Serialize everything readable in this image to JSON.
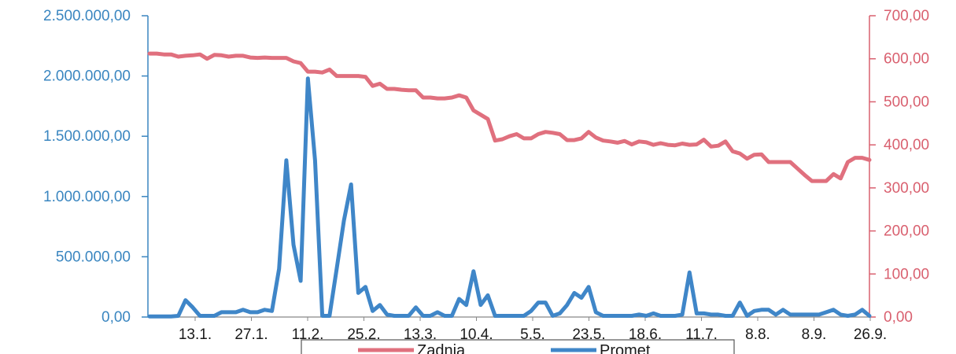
{
  "chart_data": {
    "type": "line",
    "x_tick_labels": [
      "13.1.",
      "27.1.",
      "11.2.",
      "25.2.",
      "13.3.",
      "10.4.",
      "5.5.",
      "23.5.",
      "18.6.",
      "11.7.",
      "8.8.",
      "8.9.",
      "26.9."
    ],
    "y_left": {
      "ticks": [
        "2.500.000,00",
        "2.000.000,00",
        "1.500.000,00",
        "1.000.000,00",
        "500.000,00",
        "0,00"
      ],
      "range": [
        0,
        2500000
      ],
      "color": "#3a86c0"
    },
    "y_right": {
      "ticks": [
        "700,00",
        "600,00",
        "500,00",
        "400,00",
        "300,00",
        "200,00",
        "100,00",
        "0,00"
      ],
      "range": [
        0,
        700
      ],
      "color": "#d9606f"
    },
    "legend": {
      "position": "bottom",
      "entries": [
        "Zadnja",
        "Promet"
      ]
    },
    "series": [
      {
        "name": "Zadnja",
        "axis": "right",
        "color": "#e0707e",
        "values": [
          612,
          612,
          610,
          610,
          605,
          607,
          608,
          610,
          600,
          609,
          608,
          605,
          607,
          607,
          603,
          602,
          603,
          602,
          602,
          602,
          594,
          590,
          570,
          570,
          568,
          575,
          560,
          560,
          560,
          560,
          558,
          537,
          542,
          530,
          530,
          528,
          527,
          527,
          510,
          510,
          508,
          508,
          510,
          515,
          510,
          480,
          470,
          460,
          410,
          413,
          420,
          425,
          415,
          415,
          425,
          430,
          428,
          425,
          411,
          411,
          415,
          430,
          417,
          410,
          408,
          405,
          409,
          401,
          408,
          406,
          400,
          404,
          400,
          399,
          403,
          400,
          401,
          412,
          396,
          398,
          408,
          385,
          380,
          368,
          377,
          378,
          360,
          360,
          360,
          360,
          345,
          330,
          316,
          316,
          316,
          332,
          322,
          360,
          370,
          370,
          365
        ]
      },
      {
        "name": "Promet",
        "axis": "left",
        "color": "#3f86c8",
        "values": [
          5000,
          5000,
          5000,
          5000,
          10000,
          140000,
          80000,
          10000,
          10000,
          10000,
          40000,
          40000,
          40000,
          60000,
          40000,
          40000,
          60000,
          50000,
          400000,
          1300000,
          600000,
          300000,
          1980000,
          1300000,
          10000,
          10000,
          400000,
          800000,
          1100000,
          200000,
          250000,
          50000,
          100000,
          20000,
          10000,
          10000,
          10000,
          80000,
          10000,
          10000,
          40000,
          10000,
          10000,
          150000,
          100000,
          380000,
          100000,
          180000,
          10000,
          10000,
          10000,
          10000,
          10000,
          50000,
          120000,
          120000,
          10000,
          30000,
          100000,
          200000,
          160000,
          250000,
          40000,
          10000,
          10000,
          10000,
          10000,
          10000,
          20000,
          10000,
          30000,
          10000,
          10000,
          10000,
          20000,
          370000,
          30000,
          30000,
          20000,
          20000,
          10000,
          10000,
          120000,
          10000,
          50000,
          60000,
          60000,
          20000,
          60000,
          20000,
          20000,
          20000,
          20000,
          20000,
          40000,
          60000,
          20000,
          10000,
          20000,
          60000,
          10000
        ]
      }
    ]
  }
}
